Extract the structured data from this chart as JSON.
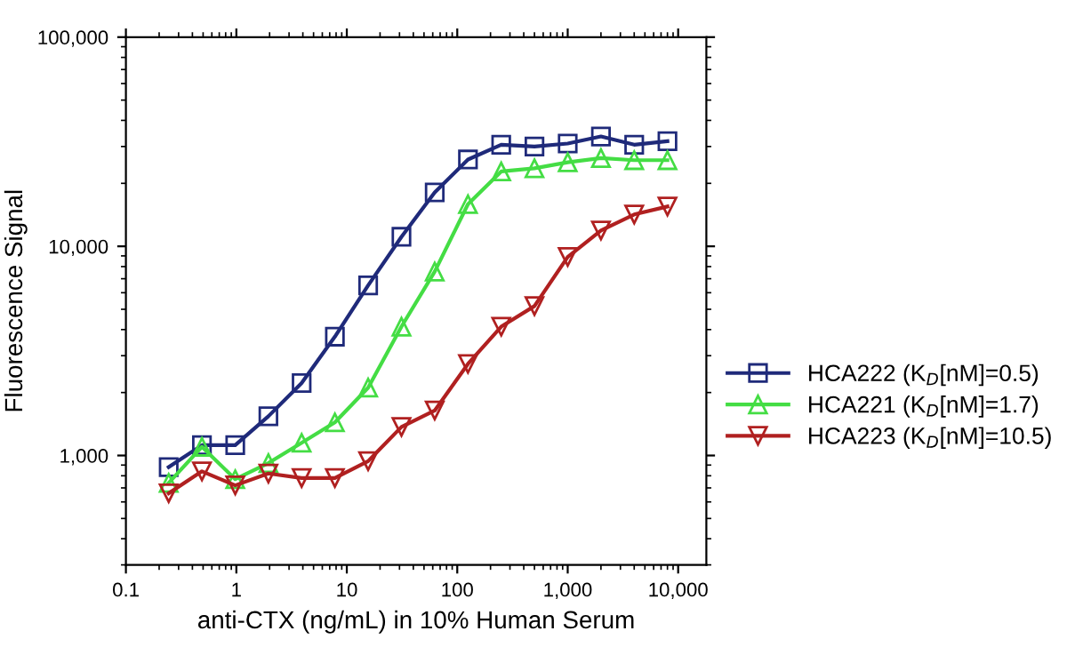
{
  "chart_data": {
    "type": "line",
    "xlabel": "anti-CTX (ng/mL) in 10% Human Serum",
    "ylabel": "Fluorescence Signal",
    "log": "xy",
    "xlim": [
      0.1,
      18000
    ],
    "ylim": [
      300,
      100000
    ],
    "xticks": [
      {
        "value": 0.1,
        "label": "0.1"
      },
      {
        "value": 1,
        "label": "1"
      },
      {
        "value": 10,
        "label": "10"
      },
      {
        "value": 100,
        "label": "100"
      },
      {
        "value": 1000,
        "label": "1,000"
      },
      {
        "value": 10000,
        "label": "10,000"
      }
    ],
    "yticks": [
      {
        "value": 1000,
        "label": "1,000"
      },
      {
        "value": 10000,
        "label": "10,000"
      },
      {
        "value": 100000,
        "label": "100,000"
      }
    ],
    "x": [
      0.244,
      0.488,
      0.977,
      1.95,
      3.9,
      7.8,
      15.6,
      31.25,
      62.5,
      125,
      250,
      500,
      1000,
      2000,
      4000,
      8000
    ],
    "legend": "right",
    "grid": false,
    "line_style": "solid",
    "series": [
      {
        "name": "HCA222 (K$_{D}$[nM]=0.5)",
        "color": "#1f2a7a",
        "marker": "square",
        "values": [
          880,
          1120,
          1120,
          1540,
          2220,
          3700,
          6500,
          11100,
          18100,
          26000,
          30600,
          30000,
          31000,
          33500,
          30600,
          31800
        ]
      },
      {
        "name": "HCA221 (K$_{D}$[nM]=1.7)",
        "color": "#44dd44",
        "marker": "triangle",
        "values": [
          740,
          1100,
          770,
          920,
          1150,
          1440,
          2110,
          4130,
          7570,
          15900,
          22800,
          23600,
          25200,
          26400,
          25800,
          25800
        ]
      },
      {
        "name": "HCA223 (K$_{D}$[nM]=10.5)",
        "color": "#b02020",
        "marker": "triangle_down",
        "values": [
          660,
          840,
          720,
          820,
          780,
          780,
          940,
          1370,
          1640,
          2740,
          4130,
          5180,
          8900,
          11900,
          14200,
          15500
        ]
      }
    ]
  }
}
